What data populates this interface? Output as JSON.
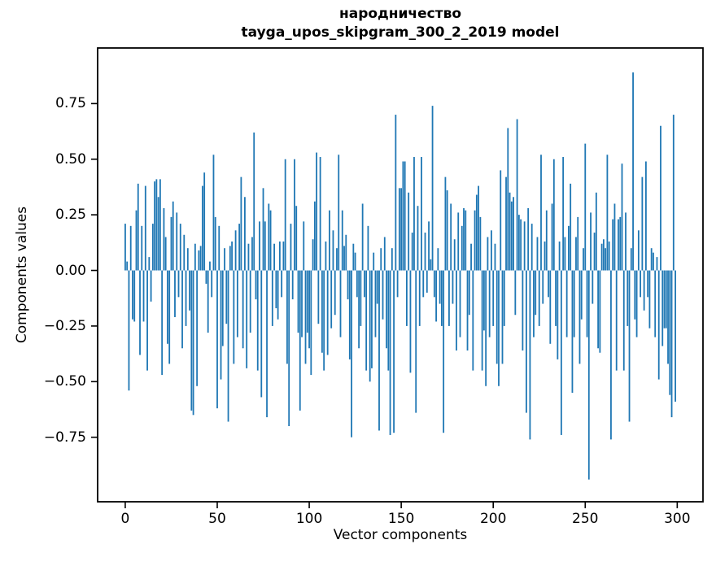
{
  "title": {
    "line1": "народничество",
    "line2": "tayga_upos_skipgram_300_2_2019 model"
  },
  "chart_data": {
    "type": "bar",
    "title": "народничество — tayga_upos_skipgram_300_2_2019 model",
    "xlabel": "Vector components",
    "ylabel": "Components values",
    "legend": null,
    "grid": false,
    "bar_color": "#1f77b4",
    "spine_color": "#000000",
    "n_components": 300,
    "xlim": [
      -15,
      314
    ],
    "ylim": [
      -1.04,
      1.0
    ],
    "x_ticks": [
      {
        "v": 0,
        "label": "0"
      },
      {
        "v": 50,
        "label": "50"
      },
      {
        "v": 100,
        "label": "100"
      },
      {
        "v": 150,
        "label": "150"
      },
      {
        "v": 200,
        "label": "200"
      },
      {
        "v": 250,
        "label": "250"
      },
      {
        "v": 300,
        "label": "300"
      }
    ],
    "y_ticks": [
      {
        "v": 0.75,
        "label": "0.75"
      },
      {
        "v": 0.5,
        "label": "0.50"
      },
      {
        "v": 0.25,
        "label": "0.25"
      },
      {
        "v": 0.0,
        "label": "0.00"
      },
      {
        "v": -0.25,
        "label": "−0.25"
      },
      {
        "v": -0.5,
        "label": "−0.50"
      },
      {
        "v": -0.75,
        "label": "−0.75"
      }
    ],
    "values": [
      0.21,
      0.04,
      -0.54,
      0.2,
      -0.22,
      -0.23,
      0.27,
      0.39,
      -0.38,
      0.2,
      -0.23,
      0.38,
      -0.45,
      0.06,
      -0.14,
      0.21,
      0.4,
      0.41,
      0.33,
      0.41,
      -0.47,
      0.28,
      0.15,
      -0.33,
      -0.42,
      0.24,
      0.31,
      -0.21,
      0.26,
      -0.12,
      0.21,
      -0.35,
      0.16,
      -0.25,
      0.1,
      -0.18,
      -0.63,
      -0.65,
      0.12,
      -0.52,
      0.09,
      0.11,
      0.38,
      0.44,
      -0.06,
      -0.28,
      0.04,
      -0.12,
      0.52,
      0.24,
      -0.62,
      0.2,
      -0.49,
      -0.34,
      0.1,
      -0.24,
      -0.68,
      0.11,
      0.13,
      -0.42,
      0.18,
      -0.3,
      0.21,
      0.42,
      -0.35,
      0.33,
      -0.44,
      0.12,
      -0.28,
      0.15,
      0.62,
      -0.13,
      -0.45,
      0.22,
      -0.57,
      0.37,
      0.22,
      -0.66,
      0.3,
      0.27,
      -0.25,
      0.12,
      -0.17,
      -0.22,
      0.13,
      -0.12,
      0.13,
      0.5,
      -0.42,
      -0.7,
      0.21,
      -0.13,
      0.5,
      0.29,
      -0.28,
      -0.63,
      -0.3,
      0.22,
      -0.42,
      -0.28,
      -0.35,
      -0.47,
      0.14,
      0.31,
      0.53,
      -0.24,
      0.51,
      -0.37,
      -0.45,
      0.13,
      -0.38,
      0.27,
      -0.26,
      0.18,
      -0.2,
      0.1,
      0.52,
      -0.3,
      0.27,
      0.11,
      0.16,
      -0.13,
      -0.4,
      -0.75,
      0.12,
      0.08,
      -0.12,
      -0.35,
      -0.25,
      0.3,
      -0.12,
      -0.45,
      0.2,
      -0.5,
      -0.44,
      0.08,
      -0.3,
      -0.15,
      -0.72,
      0.1,
      -0.22,
      0.15,
      -0.35,
      -0.45,
      -0.74,
      0.1,
      -0.73,
      0.7,
      -0.12,
      0.37,
      0.37,
      0.49,
      0.49,
      -0.25,
      0.35,
      -0.46,
      0.17,
      0.51,
      -0.64,
      0.29,
      -0.25,
      0.51,
      -0.12,
      0.17,
      -0.1,
      0.22,
      0.05,
      0.74,
      -0.12,
      -0.23,
      0.1,
      -0.15,
      -0.25,
      -0.73,
      0.42,
      0.36,
      -0.25,
      0.3,
      -0.15,
      0.14,
      -0.36,
      0.26,
      -0.3,
      0.2,
      0.28,
      0.27,
      -0.36,
      -0.2,
      0.12,
      -0.45,
      0.27,
      0.34,
      0.38,
      0.24,
      -0.45,
      -0.27,
      -0.52,
      0.15,
      -0.3,
      0.18,
      -0.25,
      0.12,
      -0.42,
      -0.52,
      0.45,
      -0.42,
      -0.25,
      0.42,
      0.64,
      0.35,
      0.31,
      0.33,
      -0.2,
      0.68,
      0.25,
      0.23,
      -0.36,
      0.22,
      -0.64,
      0.28,
      -0.76,
      0.21,
      -0.3,
      -0.2,
      0.15,
      -0.25,
      0.52,
      -0.15,
      0.13,
      0.27,
      -0.12,
      -0.33,
      0.3,
      0.5,
      -0.25,
      -0.4,
      0.13,
      -0.74,
      0.51,
      0.15,
      -0.3,
      0.2,
      0.39,
      -0.55,
      -0.3,
      0.15,
      0.24,
      -0.42,
      -0.22,
      0.1,
      0.57,
      -0.3,
      -0.94,
      0.26,
      -0.15,
      0.17,
      0.35,
      -0.35,
      -0.37,
      0.12,
      0.14,
      0.1,
      0.52,
      0.13,
      -0.76,
      0.23,
      0.3,
      -0.45,
      0.23,
      0.24,
      0.48,
      -0.45,
      0.26,
      -0.25,
      -0.68,
      0.1,
      0.89,
      -0.22,
      -0.3,
      0.18,
      -0.12,
      0.42,
      -0.18,
      0.49,
      -0.12,
      -0.26,
      0.1,
      0.08,
      -0.3,
      0.06,
      -0.49,
      0.65,
      -0.34,
      -0.26,
      -0.26,
      -0.42,
      -0.56,
      -0.66,
      0.7,
      -0.59
    ]
  }
}
